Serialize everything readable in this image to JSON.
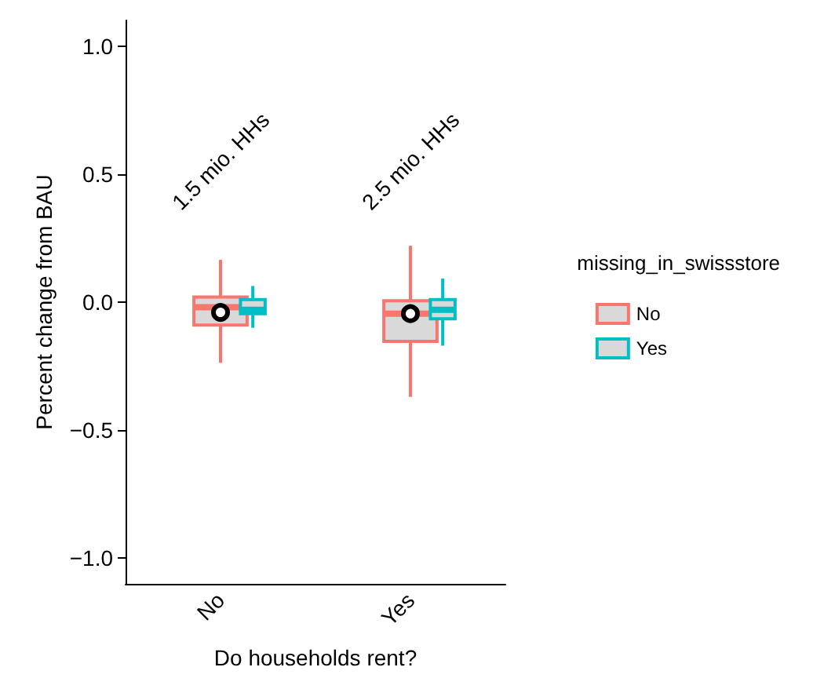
{
  "chart_data": {
    "type": "box",
    "xlabel": "Do households rent?",
    "ylabel": "Percent change from BAU",
    "legend_title": "missing_in_swissstore",
    "categories": [
      "No",
      "Yes"
    ],
    "series": [
      {
        "name": "No",
        "color": "#f8766d",
        "boxes": [
          {
            "low": -0.237,
            "q1": -0.09,
            "median": -0.02,
            "q3": 0.02,
            "high": 0.165
          },
          {
            "low": -0.37,
            "q1": -0.153,
            "median": -0.045,
            "q3": 0.005,
            "high": 0.22
          }
        ]
      },
      {
        "name": "Yes",
        "color": "#00bfc4",
        "boxes": [
          {
            "low": -0.1,
            "q1": -0.045,
            "median": -0.03,
            "q3": 0.01,
            "high": 0.063
          },
          {
            "low": -0.17,
            "q1": -0.065,
            "median": -0.03,
            "q3": 0.01,
            "high": 0.092
          }
        ]
      },
      {
        "type": "scatter",
        "color": "#000000",
        "x": [
          "No",
          "Yes"
        ],
        "values": [
          -0.04,
          -0.045
        ]
      }
    ],
    "ylim": [
      -1.1,
      1.1
    ],
    "yticks": [
      {
        "value": -1,
        "label": "−1.0"
      },
      {
        "value": -0.5,
        "label": "−0.5"
      },
      {
        "value": 0,
        "label": "0.0"
      },
      {
        "value": 0.5,
        "label": "0.5"
      },
      {
        "value": 1,
        "label": "1.0"
      }
    ],
    "grid": false,
    "legend": "right",
    "marker": "circle",
    "annotations": [
      "1.5 mio. HHs",
      "2.5 mio. HHs"
    ]
  }
}
